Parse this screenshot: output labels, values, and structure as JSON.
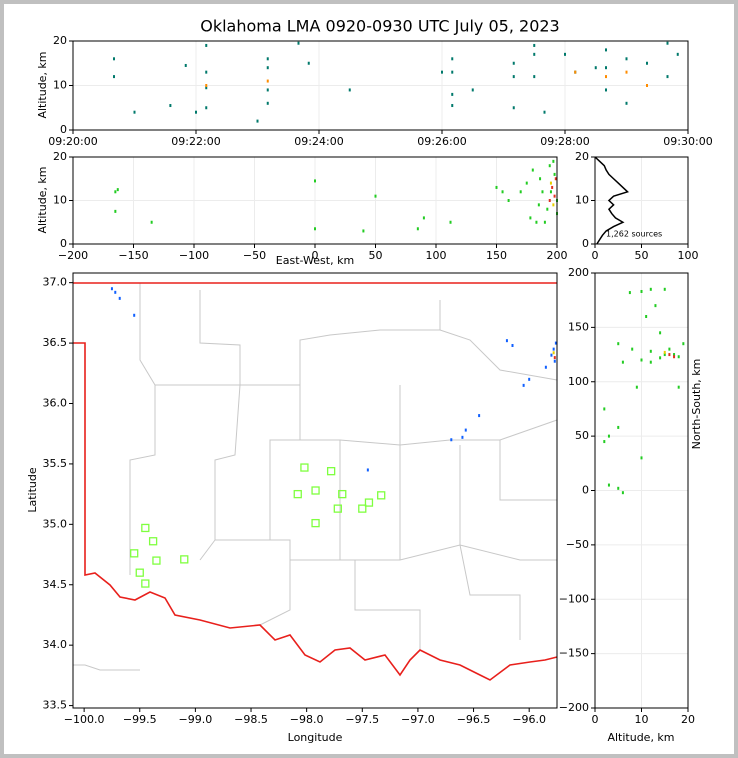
{
  "chart_data": [
    {
      "type": "scatter",
      "title": "Oklahoma LMA 0920-0930 UTC July 05, 2023",
      "ylabel": "Altitude, km",
      "xlim": [
        "09:20:00",
        "09:30:00"
      ],
      "xticks": [
        "09:20:00",
        "09:22:00",
        "09:24:00",
        "09:26:00",
        "09:28:00",
        "09:30:00"
      ],
      "ylim": [
        0,
        20
      ],
      "yticks": [
        0,
        10,
        20
      ],
      "grid": true,
      "series": [
        {
          "color": "#00796b",
          "x": [
            "09:20:40",
            "09:20:40",
            "09:21:00",
            "09:21:35",
            "09:21:50",
            "09:22:00",
            "09:22:10",
            "09:22:10",
            "09:22:10",
            "09:22:10",
            "09:23:00",
            "09:23:10",
            "09:23:10",
            "09:23:10",
            "09:23:10",
            "09:23:40",
            "09:23:50",
            "09:24:30",
            "09:26:00",
            "09:26:10",
            "09:26:10",
            "09:26:10",
            "09:26:10",
            "09:26:30",
            "09:27:10",
            "09:27:10",
            "09:27:10",
            "09:27:30",
            "09:27:30",
            "09:27:30",
            "09:27:40",
            "09:28:00",
            "09:28:10",
            "09:28:30",
            "09:28:40",
            "09:28:40",
            "09:28:40",
            "09:29:00",
            "09:29:00",
            "09:29:20",
            "09:29:40",
            "09:29:40",
            "09:29:50"
          ],
          "y": [
            16,
            12,
            4,
            5.5,
            14.5,
            4,
            19,
            13,
            9.5,
            5,
            2,
            16,
            14,
            9,
            6,
            19.5,
            15,
            9,
            13,
            16,
            13,
            8,
            5.5,
            9,
            15,
            12,
            5,
            19,
            17,
            12,
            4,
            17,
            13,
            14,
            18,
            14,
            9,
            16,
            6,
            15,
            19.5,
            12,
            17
          ]
        },
        {
          "color": "#ff8c00",
          "x": [
            "09:22:10",
            "09:23:10",
            "09:28:10",
            "09:28:40",
            "09:29:00",
            "09:29:20"
          ],
          "y": [
            10,
            11,
            13,
            12,
            13,
            10
          ]
        }
      ]
    },
    {
      "type": "scatter",
      "xlabel": "East-West, km",
      "ylabel": "Altitude, km",
      "xlim": [
        -200,
        200
      ],
      "xticks": [
        {
          "value": -200,
          "label": "−200"
        },
        {
          "value": -150,
          "label": "−150"
        },
        {
          "value": -100,
          "label": "−100"
        },
        {
          "value": -50,
          "label": "−50"
        },
        0,
        50,
        100,
        150,
        200
      ],
      "ylim": [
        0,
        20
      ],
      "yticks": [
        0,
        10,
        20
      ],
      "grid": true,
      "series": [
        {
          "color": "#22cc22",
          "x": [
            -165,
            -163,
            -165,
            -135,
            0,
            0,
            50,
            40,
            85,
            90,
            112,
            150,
            155,
            160,
            170,
            175,
            180,
            185,
            190,
            195,
            198,
            197,
            200,
            200,
            192,
            188,
            183,
            178,
            186,
            194
          ],
          "y": [
            12,
            12.5,
            7.5,
            5,
            14.5,
            3.5,
            11,
            3,
            3.5,
            6,
            5,
            13,
            12,
            10,
            12,
            14,
            17,
            9,
            5,
            12,
            16,
            19,
            10,
            7,
            8,
            12,
            5,
            6,
            15,
            18
          ]
        },
        {
          "color": "#e03020",
          "x": [
            196,
            198,
            199,
            194
          ],
          "y": [
            13,
            11,
            15,
            10
          ]
        },
        {
          "color": "#e8d000",
          "x": [
            195,
            197
          ],
          "y": [
            14,
            9
          ]
        }
      ]
    },
    {
      "type": "line",
      "xlim": [
        0,
        100
      ],
      "xticks": [
        0,
        50,
        100
      ],
      "ylim": [
        0,
        20
      ],
      "yticks": [
        0,
        10,
        20
      ],
      "grid": true,
      "annotation": "1,262 sources",
      "series": [
        {
          "color": "#000000",
          "x": [
            2,
            5,
            8,
            12,
            20,
            30,
            22,
            18,
            15,
            20,
            15,
            20,
            35,
            30,
            25,
            20,
            15,
            12,
            10,
            5,
            0
          ],
          "y": [
            0,
            1,
            2,
            3,
            4,
            5,
            6,
            7,
            8,
            9,
            10,
            11,
            12,
            13,
            14,
            15,
            16,
            17,
            18,
            19,
            20
          ]
        }
      ]
    },
    {
      "type": "scatter",
      "xlabel": "Longitude",
      "ylabel": "Latitude",
      "xlim": [
        -100.1,
        -95.75
      ],
      "xticks": [
        {
          "value": -100,
          "label": "−100.0"
        },
        {
          "value": -99.5,
          "label": "−99.5"
        },
        {
          "value": -99,
          "label": "−99.0"
        },
        {
          "value": -98.5,
          "label": "−98.5"
        },
        {
          "value": -98,
          "label": "−98.0"
        },
        {
          "value": -97.5,
          "label": "−97.5"
        },
        {
          "value": -97,
          "label": "−97.0"
        },
        {
          "value": -96.5,
          "label": "−96.5"
        },
        {
          "value": -96,
          "label": "−96.0"
        }
      ],
      "ylim": [
        33.48,
        37.08
      ],
      "yticks": [
        33.5,
        {
          "value": 34,
          "label": "34.0"
        },
        34.5,
        {
          "value": 35,
          "label": "35.0"
        },
        35.5,
        {
          "value": 36,
          "label": "36.0"
        },
        36.5,
        {
          "value": 37,
          "label": "37.0"
        }
      ],
      "grid": false,
      "series": [
        {
          "color": "#1060ff",
          "x": [
            -99.75,
            -99.72,
            -99.68,
            -99.55,
            -96.2,
            -96.15,
            -95.8,
            -95.78,
            -95.77,
            -95.85,
            -95.76,
            -96.7,
            -96.6,
            -96.57,
            -96.45,
            -96.05,
            -96.0,
            -97.45
          ],
          "y": [
            36.95,
            36.92,
            36.87,
            36.73,
            36.52,
            36.48,
            36.4,
            36.45,
            36.35,
            36.3,
            36.5,
            35.7,
            35.72,
            35.78,
            35.9,
            36.15,
            36.2,
            35.45
          ]
        },
        {
          "color": "#e8d000",
          "x": [
            -95.78
          ],
          "y": [
            36.42
          ]
        },
        {
          "color": "#e03020",
          "x": [
            -95.77
          ],
          "y": [
            36.38
          ]
        },
        {
          "color": "#7fff3f",
          "marker": "square",
          "x": [
            -99.45,
            -99.38,
            -99.55,
            -99.35,
            -99.5,
            -99.45,
            -99.1,
            -98.02,
            -98.08,
            -97.92,
            -97.78,
            -97.68,
            -97.33,
            -97.44,
            -97.5,
            -97.72,
            -97.92
          ],
          "y": [
            34.97,
            34.86,
            34.76,
            34.7,
            34.6,
            34.51,
            34.71,
            35.47,
            35.25,
            35.28,
            35.44,
            35.25,
            35.24,
            35.18,
            35.13,
            35.13,
            35.01
          ]
        }
      ]
    },
    {
      "type": "scatter",
      "xlabel": "Altitude, km",
      "ylabel": "North-South, km",
      "xlim": [
        0,
        20
      ],
      "xticks": [
        0,
        10,
        20
      ],
      "ylim": [
        -200,
        200
      ],
      "yticks": [
        {
          "value": -200,
          "label": "−200"
        },
        {
          "value": -150,
          "label": "−150"
        },
        {
          "value": -100,
          "label": "−100"
        },
        {
          "value": -50,
          "label": "−50"
        },
        0,
        50,
        100,
        150,
        200
      ],
      "grid": true,
      "series": [
        {
          "color": "#22cc22",
          "x": [
            10,
            12,
            15,
            7.5,
            13,
            11,
            14,
            5,
            8,
            12,
            15,
            17,
            18,
            10,
            12,
            6,
            14,
            16,
            19,
            9,
            18,
            2,
            3,
            2,
            5,
            10,
            3,
            5,
            6
          ],
          "y": [
            183,
            185,
            185,
            182,
            170,
            160,
            145,
            135,
            130,
            128,
            125,
            125,
            123,
            120,
            118,
            118,
            122,
            130,
            135,
            95,
            95,
            75,
            50,
            45,
            58,
            30,
            5,
            2,
            -2
          ]
        },
        {
          "color": "#e03020",
          "x": [
            16,
            17
          ],
          "y": [
            125,
            123
          ]
        },
        {
          "color": "#e8d000",
          "x": [
            15
          ],
          "y": [
            127
          ]
        }
      ]
    }
  ]
}
